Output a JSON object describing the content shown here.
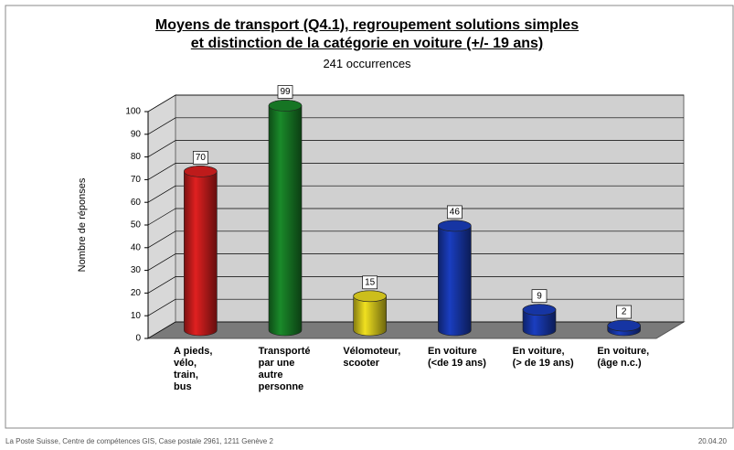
{
  "chart_data": {
    "type": "bar3d",
    "title": "Moyens de transport (Q4.1), regroupement solutions simples\net distinction de la catégorie en voiture (+/- 19 ans)",
    "subtitle": "241 occurrences",
    "y_label": "Nombre de réponses",
    "categories": [
      "A pieds,\nvélo,\ntrain,\nbus",
      "Transporté\npar une\nautre\npersonne",
      "Vélomoteur,\nscooter",
      "En voiture\n(<de 19 ans)",
      "En voiture,\n(> de 19 ans)",
      "En voiture,\n(âge n.c.)"
    ],
    "values": [
      70,
      99,
      15,
      46,
      9,
      2
    ],
    "colors": [
      "#e02020",
      "#1a8a2a",
      "#f0e020",
      "#1a3ec0",
      "#1a3ec0",
      "#1a3ec0"
    ],
    "ylim": [
      0,
      100
    ],
    "yticks": [
      0,
      10,
      20,
      30,
      40,
      50,
      60,
      70,
      80,
      90,
      100
    ],
    "grid": true,
    "footer": "La Poste Suisse, Centre de compétences GIS, Case postale 2961, 1211 Genève 2",
    "date": "20.04.20"
  }
}
